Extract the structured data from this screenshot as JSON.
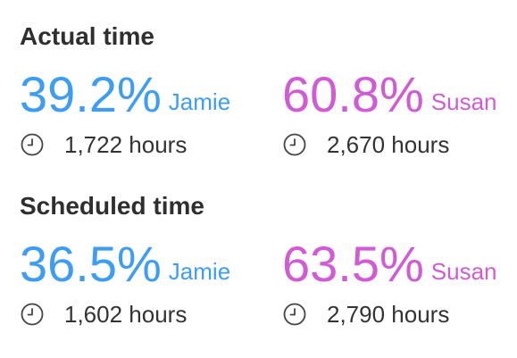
{
  "colors": {
    "jamie": "#3d9df3",
    "susan": "#d15ad6",
    "text": "#333333",
    "icon": "#444444"
  },
  "sections": [
    {
      "title": "Actual time",
      "people": [
        {
          "percent": "39.2%",
          "name": "Jamie",
          "hours": "1,722 hours",
          "icon": "clock-icon"
        },
        {
          "percent": "60.8%",
          "name": "Susan",
          "hours": "2,670 hours",
          "icon": "clock-icon"
        }
      ]
    },
    {
      "title": "Scheduled time",
      "people": [
        {
          "percent": "36.5%",
          "name": "Jamie",
          "hours": "1,602 hours",
          "icon": "clock-icon"
        },
        {
          "percent": "63.5%",
          "name": "Susan",
          "hours": "2,790 hours",
          "icon": "clock-icon"
        }
      ]
    }
  ]
}
